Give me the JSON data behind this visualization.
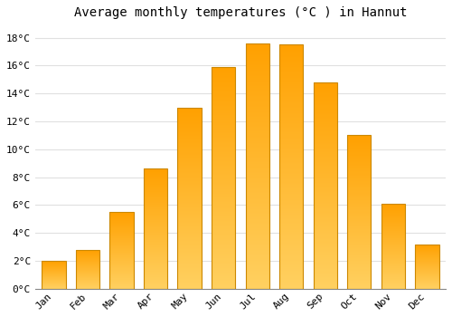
{
  "title": "Average monthly temperatures (°C ) in Hannut",
  "months": [
    "Jan",
    "Feb",
    "Mar",
    "Apr",
    "May",
    "Jun",
    "Jul",
    "Aug",
    "Sep",
    "Oct",
    "Nov",
    "Dec"
  ],
  "temperatures": [
    2.0,
    2.8,
    5.5,
    8.6,
    13.0,
    15.9,
    17.6,
    17.5,
    14.8,
    11.0,
    6.1,
    3.2
  ],
  "bar_color_top": "#FFA500",
  "bar_color_bottom": "#FFD060",
  "bar_edge_color": "#CC8800",
  "ylim": [
    0,
    19
  ],
  "yticks": [
    0,
    2,
    4,
    6,
    8,
    10,
    12,
    14,
    16,
    18
  ],
  "ytick_labels": [
    "0°C",
    "2°C",
    "4°C",
    "6°C",
    "8°C",
    "10°C",
    "12°C",
    "14°C",
    "16°C",
    "18°C"
  ],
  "background_color": "#FFFFFF",
  "grid_color": "#E0E0E0",
  "title_fontsize": 10,
  "tick_fontsize": 8,
  "bar_width": 0.7
}
